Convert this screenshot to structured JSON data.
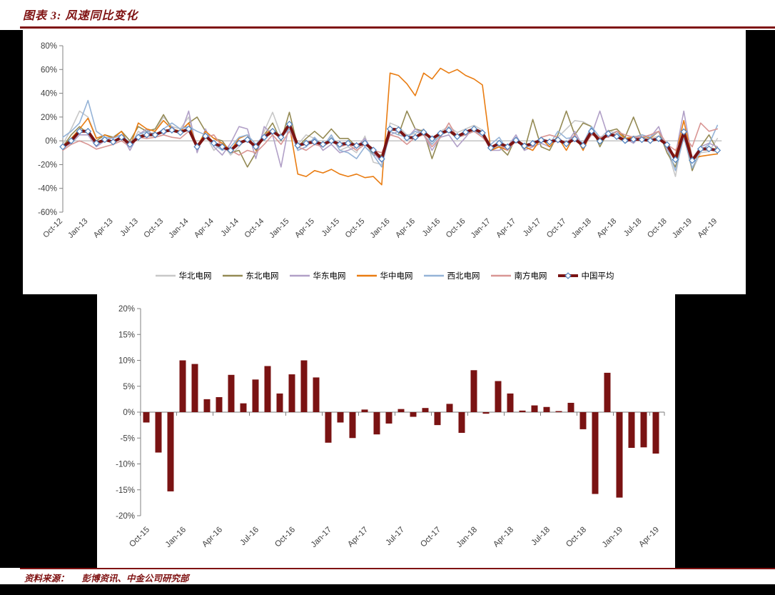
{
  "page": {
    "title": "图表 3: 风速同比变化",
    "source_label": "资料来源：",
    "source_text": "彭博资讯、中金公司研究部",
    "colors": {
      "title_red": "#7f1212",
      "background_black": "#000000",
      "panel_white": "#ffffff",
      "axis_text": "#404040",
      "axis_line": "#808080",
      "zero_line": "#a6a6a6",
      "bar_red": "#7a1313",
      "marker_outline_blue": "#4f81bd"
    }
  },
  "chart_data": [
    {
      "type": "line",
      "title": "",
      "ylabel": "",
      "xlabel": "",
      "ylim": [
        -60,
        80
      ],
      "y_tick_step": 20,
      "y_tick_labels": [
        "80%",
        "60%",
        "40%",
        "20%",
        "0%",
        "-20%",
        "-40%",
        "-60%"
      ],
      "grid": "zero-line-only",
      "legend_position": "bottom",
      "x": [
        "Oct-12",
        "Nov-12",
        "Dec-12",
        "Jan-13",
        "Feb-13",
        "Mar-13",
        "Apr-13",
        "May-13",
        "Jun-13",
        "Jul-13",
        "Aug-13",
        "Sep-13",
        "Oct-13",
        "Nov-13",
        "Dec-13",
        "Jan-14",
        "Feb-14",
        "Mar-14",
        "Apr-14",
        "May-14",
        "Jun-14",
        "Jul-14",
        "Aug-14",
        "Sep-14",
        "Oct-14",
        "Nov-14",
        "Dec-14",
        "Jan-15",
        "Feb-15",
        "Mar-15",
        "Apr-15",
        "May-15",
        "Jun-15",
        "Jul-15",
        "Aug-15",
        "Sep-15",
        "Oct-15",
        "Nov-15",
        "Dec-15",
        "Jan-16",
        "Feb-16",
        "Mar-16",
        "Apr-16",
        "May-16",
        "Jun-16",
        "Jul-16",
        "Aug-16",
        "Sep-16",
        "Oct-16",
        "Nov-16",
        "Dec-16",
        "Jan-17",
        "Feb-17",
        "Mar-17",
        "Apr-17",
        "May-17",
        "Jun-17",
        "Jul-17",
        "Aug-17",
        "Sep-17",
        "Oct-17",
        "Nov-17",
        "Dec-17",
        "Jan-18",
        "Feb-18",
        "Mar-18",
        "Apr-18",
        "May-18",
        "Jun-18",
        "Jul-18",
        "Aug-18",
        "Sep-18",
        "Oct-18",
        "Nov-18",
        "Dec-18",
        "Jan-19",
        "Feb-19",
        "Mar-19",
        "Apr-19"
      ],
      "x_tick_labels": [
        "Oct-12",
        "Jan-13",
        "Apr-13",
        "Jul-13",
        "Oct-13",
        "Jan-14",
        "Apr-14",
        "Jul-14",
        "Oct-14",
        "Jan-15",
        "Apr-15",
        "Jul-15",
        "Oct-15",
        "Jan-16",
        "Apr-16",
        "Jul-16",
        "Oct-16",
        "Jan-17",
        "Apr-17",
        "Jul-17",
        "Oct-17",
        "Jan-18",
        "Apr-18",
        "Jul-18",
        "Oct-18",
        "Jan-19",
        "Apr-19"
      ],
      "series": [
        {
          "name": "华北电网",
          "color": "#c8c8c8",
          "values": [
            -3,
            10,
            25,
            20,
            3,
            2,
            -2,
            5,
            -5,
            8,
            3,
            8,
            20,
            12,
            10,
            20,
            -8,
            5,
            -8,
            -2,
            -12,
            -5,
            3,
            -8,
            8,
            24,
            5,
            12,
            -3,
            5,
            2,
            -5,
            3,
            -8,
            -5,
            -10,
            4,
            -18,
            -20,
            15,
            12,
            5,
            6,
            10,
            -3,
            8,
            12,
            7,
            10,
            13,
            9,
            -8,
            -4,
            -8,
            2,
            -6,
            -4,
            3,
            -2,
            3,
            10,
            17,
            16,
            12,
            2,
            9,
            6,
            2,
            4,
            3,
            2,
            4,
            -6,
            -30,
            10,
            -25,
            -10,
            -9,
            2
          ]
        },
        {
          "name": "东北电网",
          "color": "#948a54",
          "values": [
            -5,
            5,
            12,
            6,
            0,
            5,
            3,
            8,
            0,
            12,
            8,
            10,
            22,
            10,
            8,
            15,
            20,
            8,
            2,
            0,
            -10,
            -8,
            -22,
            -10,
            5,
            15,
            0,
            24,
            -5,
            2,
            8,
            2,
            10,
            2,
            2,
            -5,
            0,
            -12,
            -12,
            8,
            5,
            25,
            10,
            8,
            -15,
            5,
            8,
            2,
            8,
            8,
            5,
            -8,
            -5,
            -12,
            3,
            -8,
            18,
            -5,
            -8,
            5,
            25,
            5,
            15,
            12,
            -5,
            8,
            10,
            3,
            20,
            2,
            5,
            8,
            -10,
            -22,
            5,
            -25,
            -5,
            5,
            -8
          ]
        },
        {
          "name": "华东电网",
          "color": "#b1a0c7",
          "values": [
            -6,
            -2,
            5,
            5,
            -5,
            0,
            3,
            5,
            -8,
            5,
            10,
            3,
            5,
            12,
            5,
            25,
            -10,
            10,
            -5,
            -12,
            -2,
            12,
            10,
            -15,
            12,
            5,
            -22,
            15,
            -8,
            -5,
            2,
            -8,
            -3,
            -10,
            -8,
            -5,
            2,
            -10,
            -18,
            5,
            8,
            2,
            10,
            5,
            -8,
            3,
            5,
            -5,
            3,
            12,
            5,
            -8,
            -8,
            -5,
            5,
            -8,
            -5,
            -2,
            -5,
            2,
            -3,
            8,
            -5,
            5,
            25,
            3,
            8,
            2,
            -2,
            5,
            3,
            12,
            -8,
            -12,
            25,
            -15,
            -5,
            -2,
            -5
          ]
        },
        {
          "name": "华中电网",
          "color": "#e97c11",
          "values": [
            -5,
            2,
            10,
            19,
            2,
            5,
            2,
            8,
            -5,
            15,
            10,
            8,
            17,
            10,
            8,
            15,
            -5,
            8,
            2,
            -2,
            -8,
            2,
            5,
            -8,
            5,
            10,
            2,
            13,
            -28,
            -30,
            -25,
            -27,
            -24,
            -28,
            -30,
            -28,
            -31,
            -30,
            -37,
            57,
            55,
            48,
            38,
            57,
            52,
            61,
            57,
            60,
            55,
            52,
            47,
            -8,
            -5,
            -8,
            2,
            -5,
            -8,
            2,
            -5,
            3,
            -8,
            5,
            -8,
            8,
            2,
            5,
            8,
            2,
            3,
            5,
            2,
            8,
            -5,
            -13,
            17,
            -15,
            -13,
            -12,
            -11
          ]
        },
        {
          "name": "西北电网",
          "color": "#95b3d7",
          "values": [
            3,
            8,
            15,
            34,
            8,
            3,
            2,
            5,
            -2,
            5,
            8,
            5,
            10,
            15,
            10,
            12,
            8,
            5,
            -3,
            -8,
            -5,
            3,
            5,
            -3,
            5,
            8,
            3,
            10,
            -8,
            -5,
            3,
            -5,
            5,
            -8,
            -10,
            -15,
            -5,
            -12,
            -22,
            8,
            5,
            3,
            8,
            5,
            -3,
            5,
            8,
            3,
            5,
            8,
            5,
            -3,
            3,
            -8,
            3,
            -5,
            -3,
            3,
            -3,
            8,
            2,
            3,
            -2,
            12,
            3,
            5,
            8,
            -2,
            3,
            5,
            3,
            8,
            -5,
            -25,
            3,
            -23,
            -8,
            -3,
            13
          ]
        },
        {
          "name": "南方电网",
          "color": "#d99694",
          "values": [
            -8,
            -3,
            0,
            -3,
            -7,
            -5,
            -3,
            0,
            -5,
            3,
            2,
            3,
            5,
            3,
            2,
            8,
            -3,
            3,
            5,
            -5,
            -8,
            -12,
            -8,
            -10,
            -3,
            5,
            -3,
            8,
            -5,
            -8,
            -3,
            -5,
            0,
            -5,
            -3,
            -8,
            -3,
            -8,
            -10,
            5,
            3,
            -3,
            3,
            5,
            -5,
            3,
            15,
            3,
            5,
            8,
            3,
            -5,
            -3,
            -8,
            0,
            -3,
            -5,
            3,
            5,
            3,
            -3,
            5,
            -5,
            5,
            3,
            3,
            8,
            5,
            3,
            3,
            5,
            8,
            -3,
            -8,
            5,
            -5,
            15,
            8,
            10
          ]
        },
        {
          "name": "中国平均",
          "color": "#7a1313",
          "marker": "diamond",
          "values": [
            -5,
            0,
            8,
            8,
            -2,
            1,
            -1,
            3,
            -3,
            3,
            5,
            5,
            8,
            9,
            7,
            10,
            -5,
            4,
            -2,
            -5,
            -8,
            -2,
            1,
            -5,
            3,
            8,
            3,
            14,
            -4,
            -2,
            -1,
            -3,
            0,
            -3,
            -2,
            -4,
            -2,
            -7.8,
            -15.3,
            10,
            9.3,
            2.5,
            2.9,
            7.2,
            1.7,
            6.3,
            8.9,
            3.6,
            7.3,
            10,
            6.7,
            -5.9,
            -2,
            -5,
            0.5,
            -4.3,
            -2.2,
            0.6,
            -0.9,
            0.8,
            -2.5,
            1.6,
            -4,
            8.1,
            -0.3,
            6,
            3.6,
            0.3,
            1.3,
            1,
            0.2,
            1.8,
            -3.3,
            -15.8,
            7.6,
            -16.5,
            -6.9,
            -6.8,
            -8
          ]
        }
      ]
    },
    {
      "type": "bar",
      "title": "",
      "ylabel": "",
      "xlabel": "",
      "color": "#7a1313",
      "ylim": [
        -20,
        20
      ],
      "y_tick_step": 5,
      "y_tick_labels": [
        "20%",
        "15%",
        "10%",
        "5%",
        "0%",
        "-5%",
        "-10%",
        "-15%",
        "-20%"
      ],
      "categories": [
        "Oct-15",
        "Nov-15",
        "Dec-15",
        "Jan-16",
        "Feb-16",
        "Mar-16",
        "Apr-16",
        "May-16",
        "Jun-16",
        "Jul-16",
        "Aug-16",
        "Sep-16",
        "Oct-16",
        "Nov-16",
        "Dec-16",
        "Jan-17",
        "Feb-17",
        "Mar-17",
        "Apr-17",
        "May-17",
        "Jun-17",
        "Jul-17",
        "Aug-17",
        "Sep-17",
        "Oct-17",
        "Nov-17",
        "Dec-17",
        "Jan-18",
        "Feb-18",
        "Mar-18",
        "Apr-18",
        "May-18",
        "Jun-18",
        "Jul-18",
        "Aug-18",
        "Sep-18",
        "Oct-18",
        "Nov-18",
        "Dec-18",
        "Jan-19",
        "Feb-19",
        "Mar-19",
        "Apr-19"
      ],
      "x_tick_labels": [
        "Oct-15",
        "Jan-16",
        "Apr-16",
        "Jul-16",
        "Oct-16",
        "Jan-17",
        "Apr-17",
        "Jul-17",
        "Oct-17",
        "Jan-18",
        "Apr-18",
        "Jul-18",
        "Oct-18",
        "Jan-19",
        "Apr-19"
      ],
      "values": [
        -2,
        -7.8,
        -15.3,
        10,
        9.3,
        2.5,
        2.9,
        7.2,
        1.7,
        6.3,
        8.9,
        3.6,
        7.3,
        10,
        6.7,
        -5.9,
        -2,
        -5,
        0.5,
        -4.3,
        -2.2,
        0.6,
        -0.9,
        0.8,
        -2.5,
        1.6,
        -4,
        8.1,
        -0.3,
        6,
        3.6,
        0.3,
        1.3,
        1,
        0.2,
        1.8,
        -3.3,
        -15.8,
        7.6,
        -16.5,
        -6.9,
        -6.8,
        -8
      ]
    }
  ]
}
